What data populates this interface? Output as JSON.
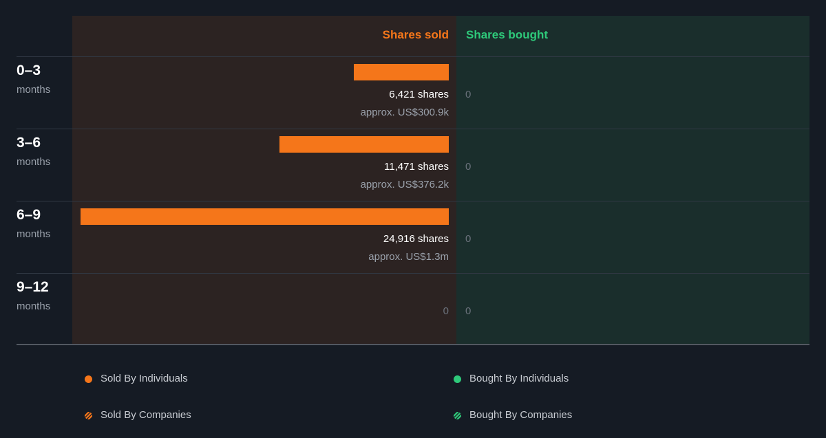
{
  "header": {
    "sold_label": "Shares sold",
    "bought_label": "Shares bought"
  },
  "colors": {
    "sold": "#f5761a",
    "bought": "#2ec97a"
  },
  "rows": [
    {
      "period": "0–3",
      "unit": "months",
      "sold_shares": 6421,
      "sold_text": "6,421 shares",
      "sold_value": "approx. US$300.9k",
      "bought_text": "0"
    },
    {
      "period": "3–6",
      "unit": "months",
      "sold_shares": 11471,
      "sold_text": "11,471 shares",
      "sold_value": "approx. US$376.2k",
      "bought_text": "0"
    },
    {
      "period": "6–9",
      "unit": "months",
      "sold_shares": 24916,
      "sold_text": "24,916 shares",
      "sold_value": "approx. US$1.3m",
      "bought_text": "0"
    },
    {
      "period": "9–12",
      "unit": "months",
      "sold_shares": 0,
      "sold_text": "0",
      "sold_value": "",
      "bought_text": "0"
    }
  ],
  "legend": {
    "sold_individuals": "Sold By Individuals",
    "sold_companies": "Sold By Companies",
    "bought_individuals": "Bought By Individuals",
    "bought_companies": "Bought By Companies"
  },
  "chart_data": {
    "type": "bar",
    "categories": [
      "0–3 months",
      "3–6 months",
      "6–9 months",
      "9–12 months"
    ],
    "series": [
      {
        "name": "Sold By Individuals",
        "values": [
          6421,
          11471,
          24916,
          0
        ]
      },
      {
        "name": "Sold By Companies",
        "values": [
          0,
          0,
          0,
          0
        ]
      },
      {
        "name": "Bought By Individuals",
        "values": [
          0,
          0,
          0,
          0
        ]
      },
      {
        "name": "Bought By Companies",
        "values": [
          0,
          0,
          0,
          0
        ]
      }
    ],
    "sold_values_usd": [
      "approx. US$300.9k",
      "approx. US$376.2k",
      "approx. US$1.3m",
      ""
    ],
    "orientation": "horizontal",
    "legend_position": "bottom"
  }
}
